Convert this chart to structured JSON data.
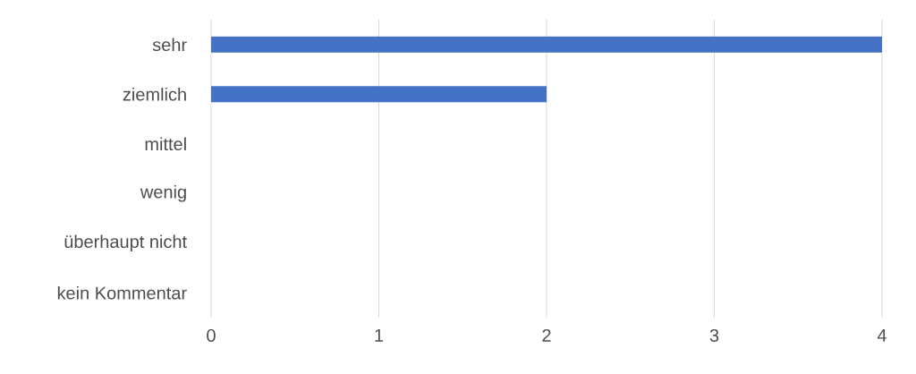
{
  "chart_data": {
    "type": "bar",
    "orientation": "horizontal",
    "categories": [
      "sehr",
      "ziemlich",
      "mittel",
      "wenig",
      "überhaupt nicht",
      "kein Kommentar"
    ],
    "values": [
      4,
      2,
      0,
      0,
      0,
      0
    ],
    "color": "#4472c4",
    "xlim": [
      0,
      4
    ],
    "xticks": [
      0,
      1,
      2,
      3,
      4
    ],
    "grid": "x"
  }
}
